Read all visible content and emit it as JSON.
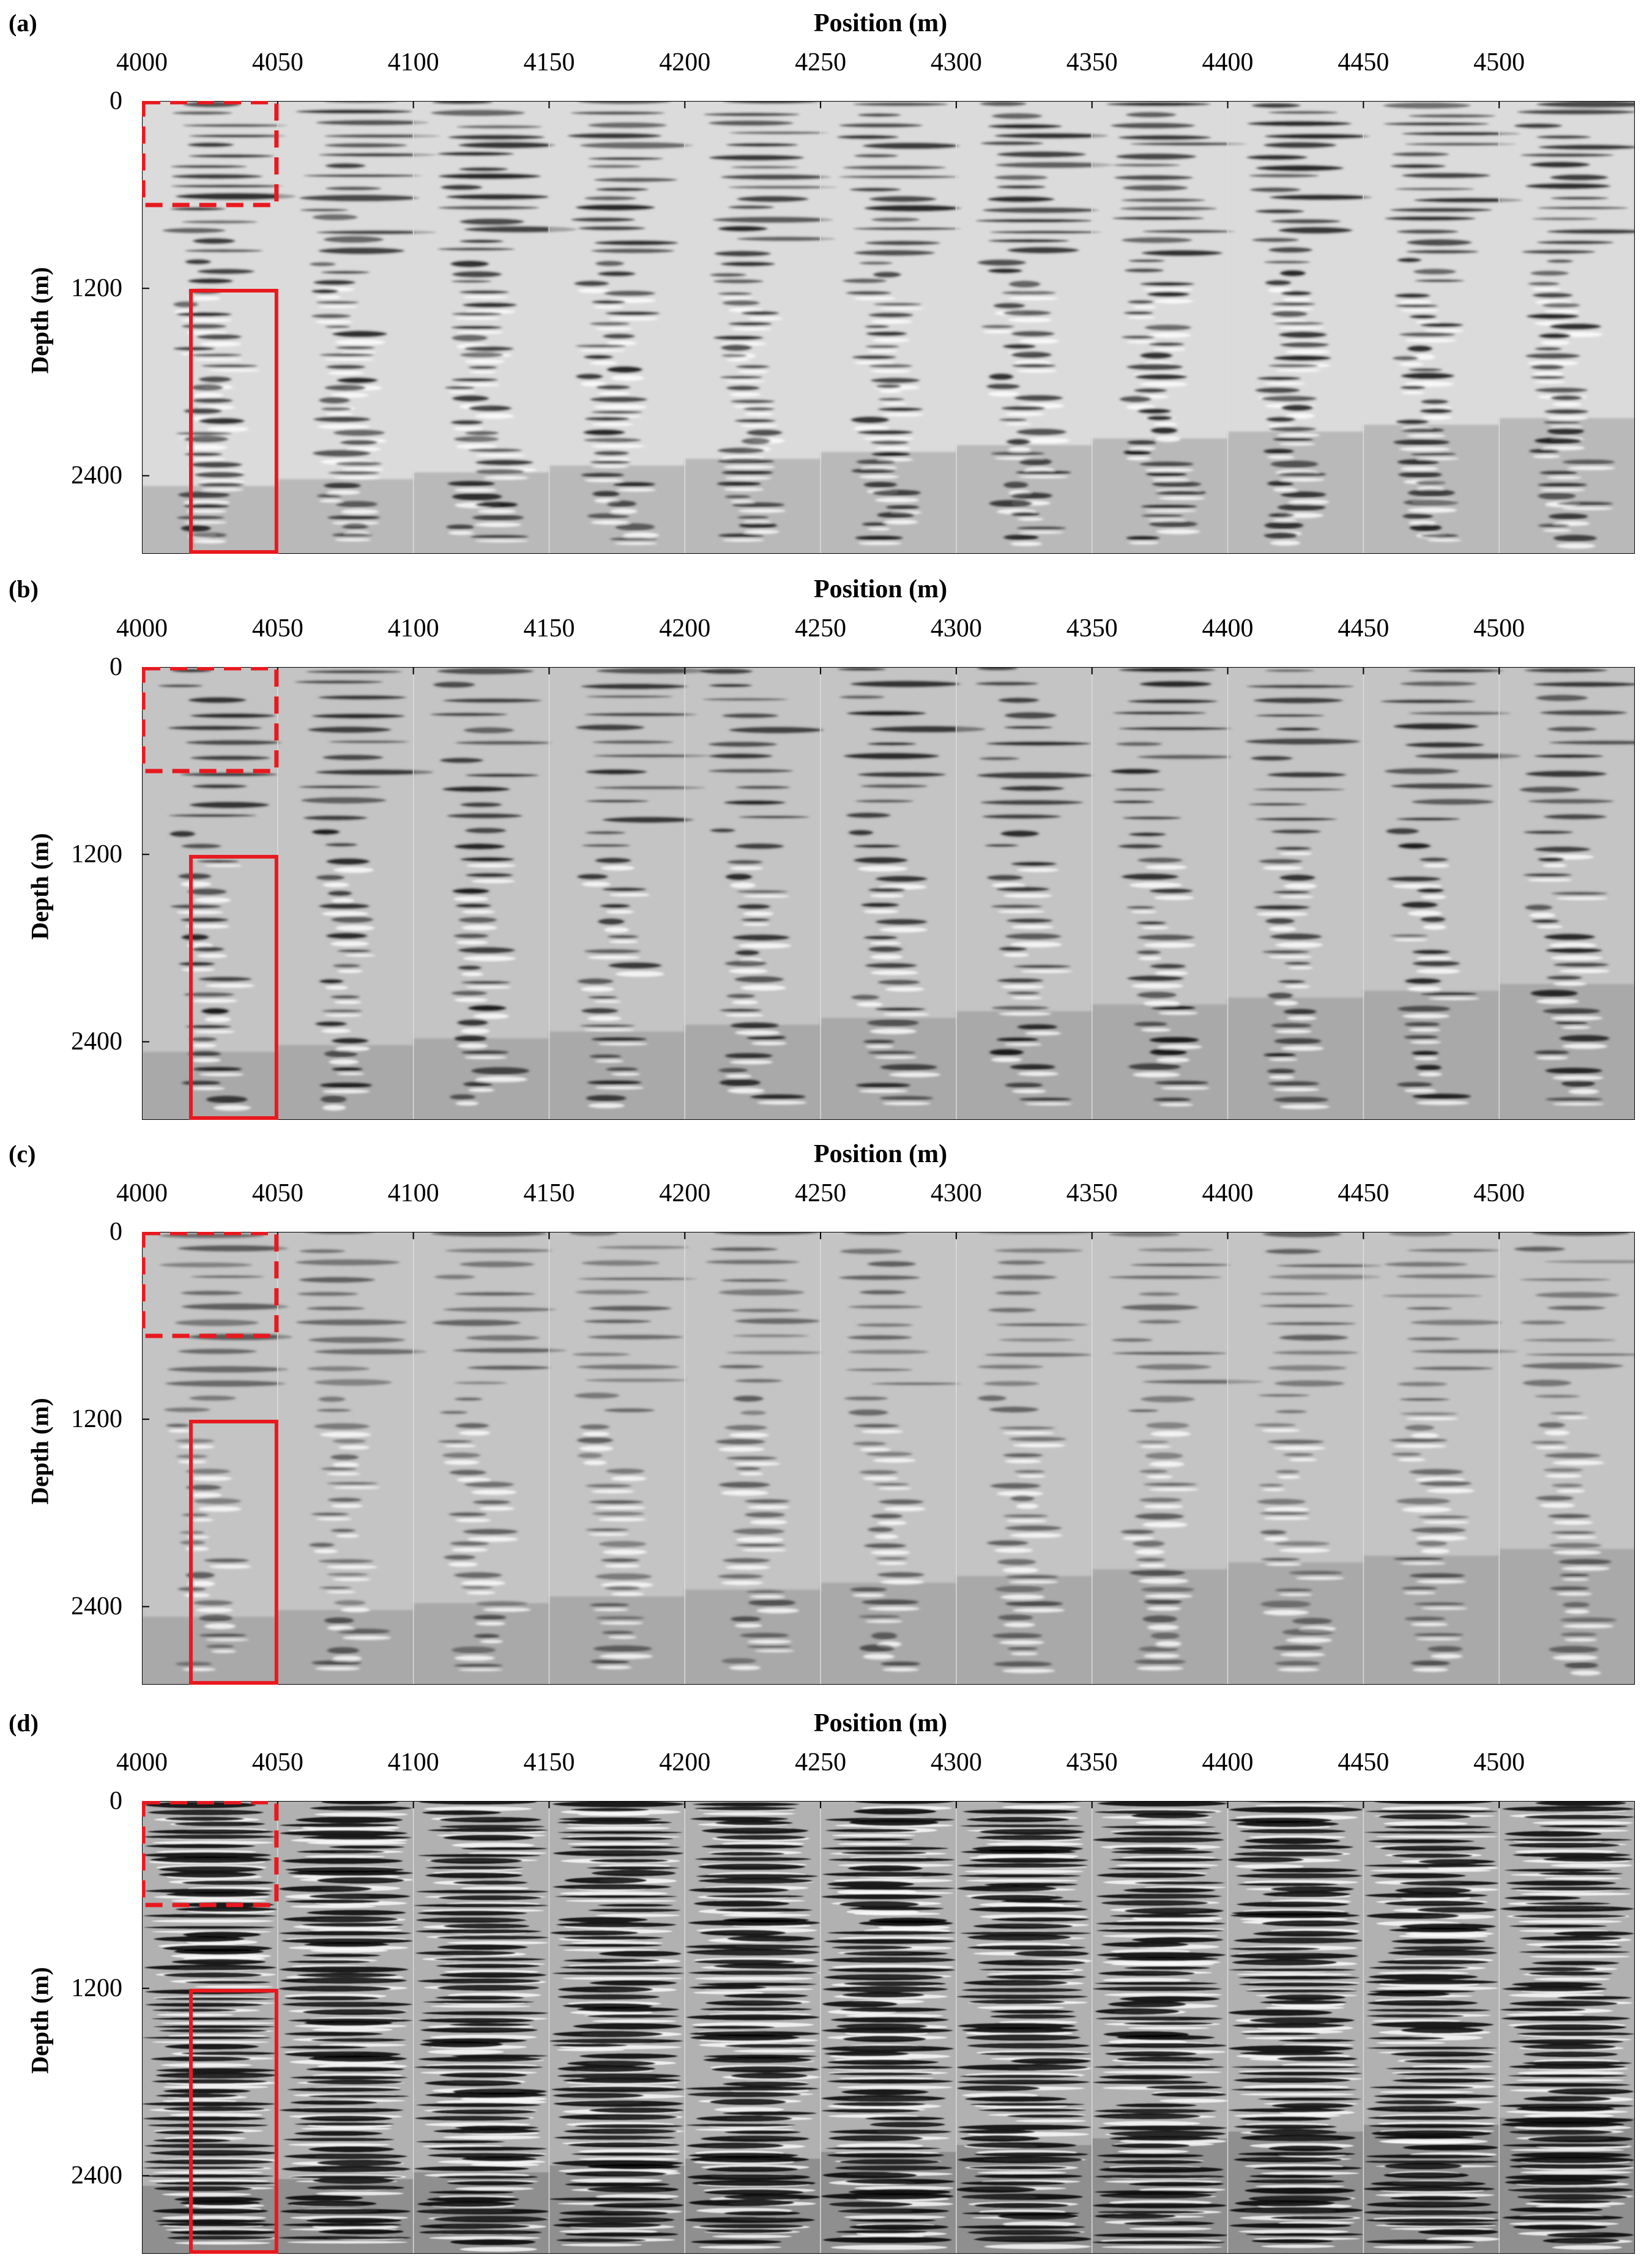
{
  "figure": {
    "panels": [
      {
        "letter": "(a)",
        "style": "a"
      },
      {
        "letter": "(b)",
        "style": "b"
      },
      {
        "letter": "(c)",
        "style": "c"
      },
      {
        "letter": "(d)",
        "style": "d"
      }
    ],
    "x_axis_title": "Position (m)",
    "y_axis_title": "Depth (m)",
    "x_ticks": [
      "4000",
      "4050",
      "4100",
      "4150",
      "4200",
      "4250",
      "4300",
      "4350",
      "4400",
      "4450",
      "4500"
    ],
    "y_ticks": [
      "0",
      "1200",
      "2400"
    ],
    "highlight_color": "#e8191f",
    "colormap": "grayscale"
  }
}
